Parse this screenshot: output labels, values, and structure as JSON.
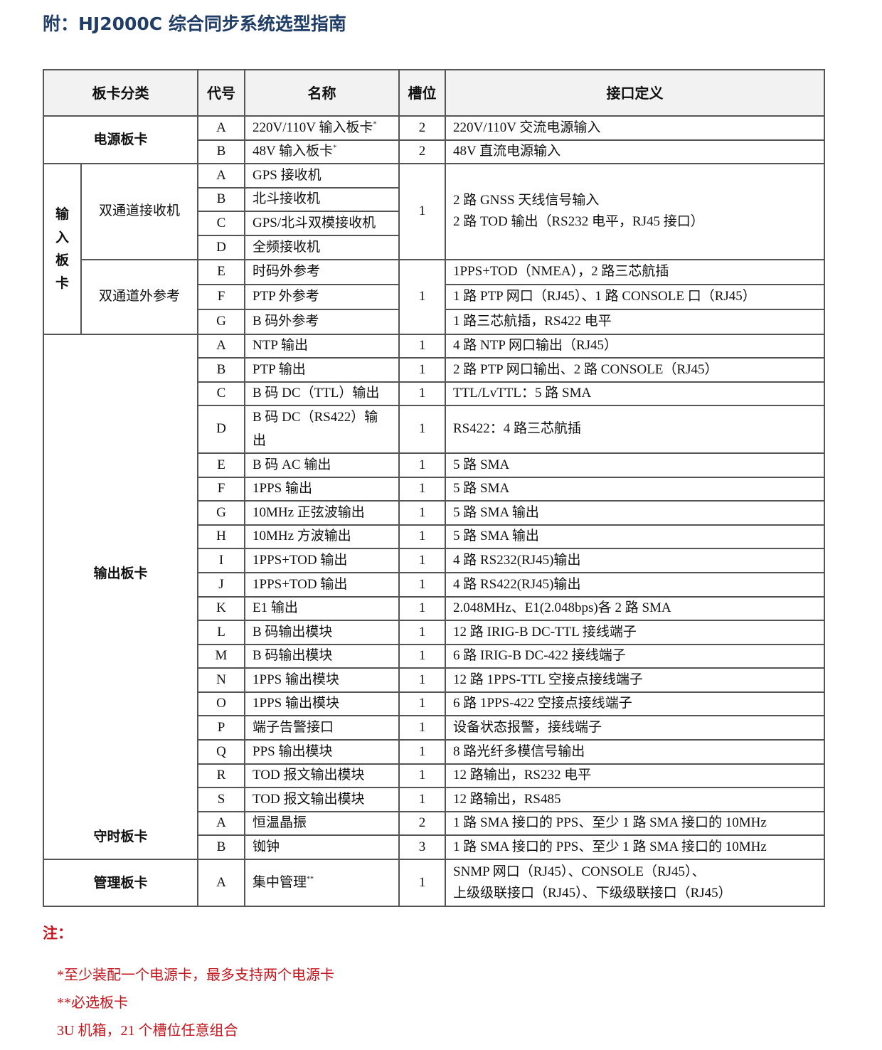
{
  "title": "附：HJ2000C 综合同步系统选型指南",
  "colors": {
    "title": "#1f3d66",
    "notes": "#c4141c",
    "header_bg": "#f2f2f2"
  },
  "table": {
    "headers": [
      "板卡分类",
      "代号",
      "名称",
      "槽位",
      "接口定义"
    ],
    "categories": {
      "power": "电源板卡",
      "input": "输入板卡",
      "receivers": "双通道接收机",
      "extref": "双通道外参考",
      "output": "输出板卡",
      "holdover": "守时板卡",
      "management": "管理板卡"
    },
    "rows": [
      {
        "code": "A",
        "name": "220V/110V 输入板卡",
        "mark": "*",
        "slot": "2",
        "iface": [
          "220V/110V 交流电源输入"
        ]
      },
      {
        "code": "B",
        "name": "48V 输入板卡",
        "mark": "*",
        "slot": "2",
        "iface": [
          "48V 直流电源输入"
        ]
      },
      {
        "code": "A",
        "name": "GPS 接收机",
        "slot": "1",
        "iface": [
          "2 路 GNSS 天线信号输入",
          "2 路 TOD 输出（RS232 电平，RJ45 接口）"
        ]
      },
      {
        "code": "B",
        "name": "北斗接收机"
      },
      {
        "code": "C",
        "name": "GPS/北斗双模接收机"
      },
      {
        "code": "D",
        "name": "全频接收机"
      },
      {
        "code": "E",
        "name": "时码外参考",
        "slot": "1",
        "iface": [
          "1PPS+TOD（NMEA），2 路三芯航插"
        ]
      },
      {
        "code": "F",
        "name": "PTP 外参考",
        "iface": [
          "1 路 PTP 网口（RJ45）、1 路 CONSOLE 口（RJ45）"
        ]
      },
      {
        "code": "G",
        "name": "B 码外参考",
        "iface": [
          "1 路三芯航插，RS422 电平"
        ]
      },
      {
        "code": "A",
        "name": "NTP 输出",
        "slot": "1",
        "iface": [
          "4 路 NTP 网口输出（RJ45）"
        ]
      },
      {
        "code": "B",
        "name": "PTP 输出",
        "slot": "1",
        "iface": [
          "2 路 PTP 网口输出、2 路 CONSOLE（RJ45）"
        ]
      },
      {
        "code": "C",
        "name": "B 码 DC（TTL）输出",
        "slot": "1",
        "iface": [
          "TTL/LvTTL：5 路 SMA"
        ]
      },
      {
        "code": "D",
        "name": "B 码 DC（RS422）输出",
        "slot": "1",
        "iface": [
          "RS422：4 路三芯航插"
        ]
      },
      {
        "code": "E",
        "name": "B 码 AC 输出",
        "slot": "1",
        "iface": [
          "5 路 SMA"
        ]
      },
      {
        "code": "F",
        "name": "1PPS 输出",
        "slot": "1",
        "iface": [
          "5 路 SMA"
        ]
      },
      {
        "code": "G",
        "name": "10MHz 正弦波输出",
        "slot": "1",
        "iface": [
          "5 路 SMA 输出"
        ]
      },
      {
        "code": "H",
        "name": "10MHz 方波输出",
        "slot": "1",
        "iface": [
          "5 路 SMA 输出"
        ]
      },
      {
        "code": "I",
        "name": "1PPS+TOD 输出",
        "slot": "1",
        "iface": [
          "4 路 RS232(RJ45)输出"
        ]
      },
      {
        "code": "J",
        "name": "1PPS+TOD 输出",
        "slot": "1",
        "iface": [
          "4 路 RS422(RJ45)输出"
        ]
      },
      {
        "code": "K",
        "name": "E1 输出",
        "slot": "1",
        "iface": [
          "2.048MHz、E1(2.048bps)各 2 路 SMA"
        ]
      },
      {
        "code": "L",
        "name": "B 码输出模块",
        "slot": "1",
        "iface": [
          "12 路  IRIG-B  DC-TTL 接线端子"
        ]
      },
      {
        "code": "M",
        "name": "B 码输出模块",
        "slot": "1",
        "iface": [
          "6 路  IRIG-B  DC-422 接线端子"
        ]
      },
      {
        "code": "N",
        "name": "1PPS 输出模块",
        "slot": "1",
        "iface": [
          "12 路 1PPS-TTL 空接点接线端子"
        ]
      },
      {
        "code": "O",
        "name": "1PPS 输出模块",
        "slot": "1",
        "iface": [
          "6 路 1PPS-422 空接点接线端子"
        ]
      },
      {
        "code": "P",
        "name": "端子告警接口",
        "slot": "1",
        "iface": [
          "设备状态报警，接线端子"
        ]
      },
      {
        "code": "Q",
        "name": "PPS 输出模块",
        "slot": "1",
        "iface": [
          "8 路光纤多模信号输出"
        ]
      },
      {
        "code": "R",
        "name": "TOD 报文输出模块",
        "slot": "1",
        "iface": [
          "12 路输出，RS232 电平"
        ]
      },
      {
        "code": "S",
        "name": "TOD 报文输出模块",
        "slot": "1",
        "iface": [
          "12 路输出，RS485"
        ]
      },
      {
        "code": "A",
        "name": "恒温晶振",
        "slot": "2",
        "iface": [
          "1 路 SMA 接口的 PPS、至少 1 路 SMA 接口的 10MHz"
        ]
      },
      {
        "code": "B",
        "name": "铷钟",
        "slot": "3",
        "iface": [
          "1 路 SMA 接口的 PPS、至少 1 路 SMA 接口的 10MHz"
        ]
      },
      {
        "code": "A",
        "name": "集中管理",
        "mark": "**",
        "slot": "1",
        "iface": [
          "SNMP 网口（RJ45）、CONSOLE（RJ45）、",
          "上级级联接口（RJ45）、下级级联接口（RJ45）"
        ]
      }
    ]
  },
  "notes": {
    "heading": "注：",
    "items": [
      "*至少装配一个电源卡，最多支持两个电源卡",
      "**必选板卡",
      "3U 机箱，21 个槽位任意组合"
    ]
  }
}
